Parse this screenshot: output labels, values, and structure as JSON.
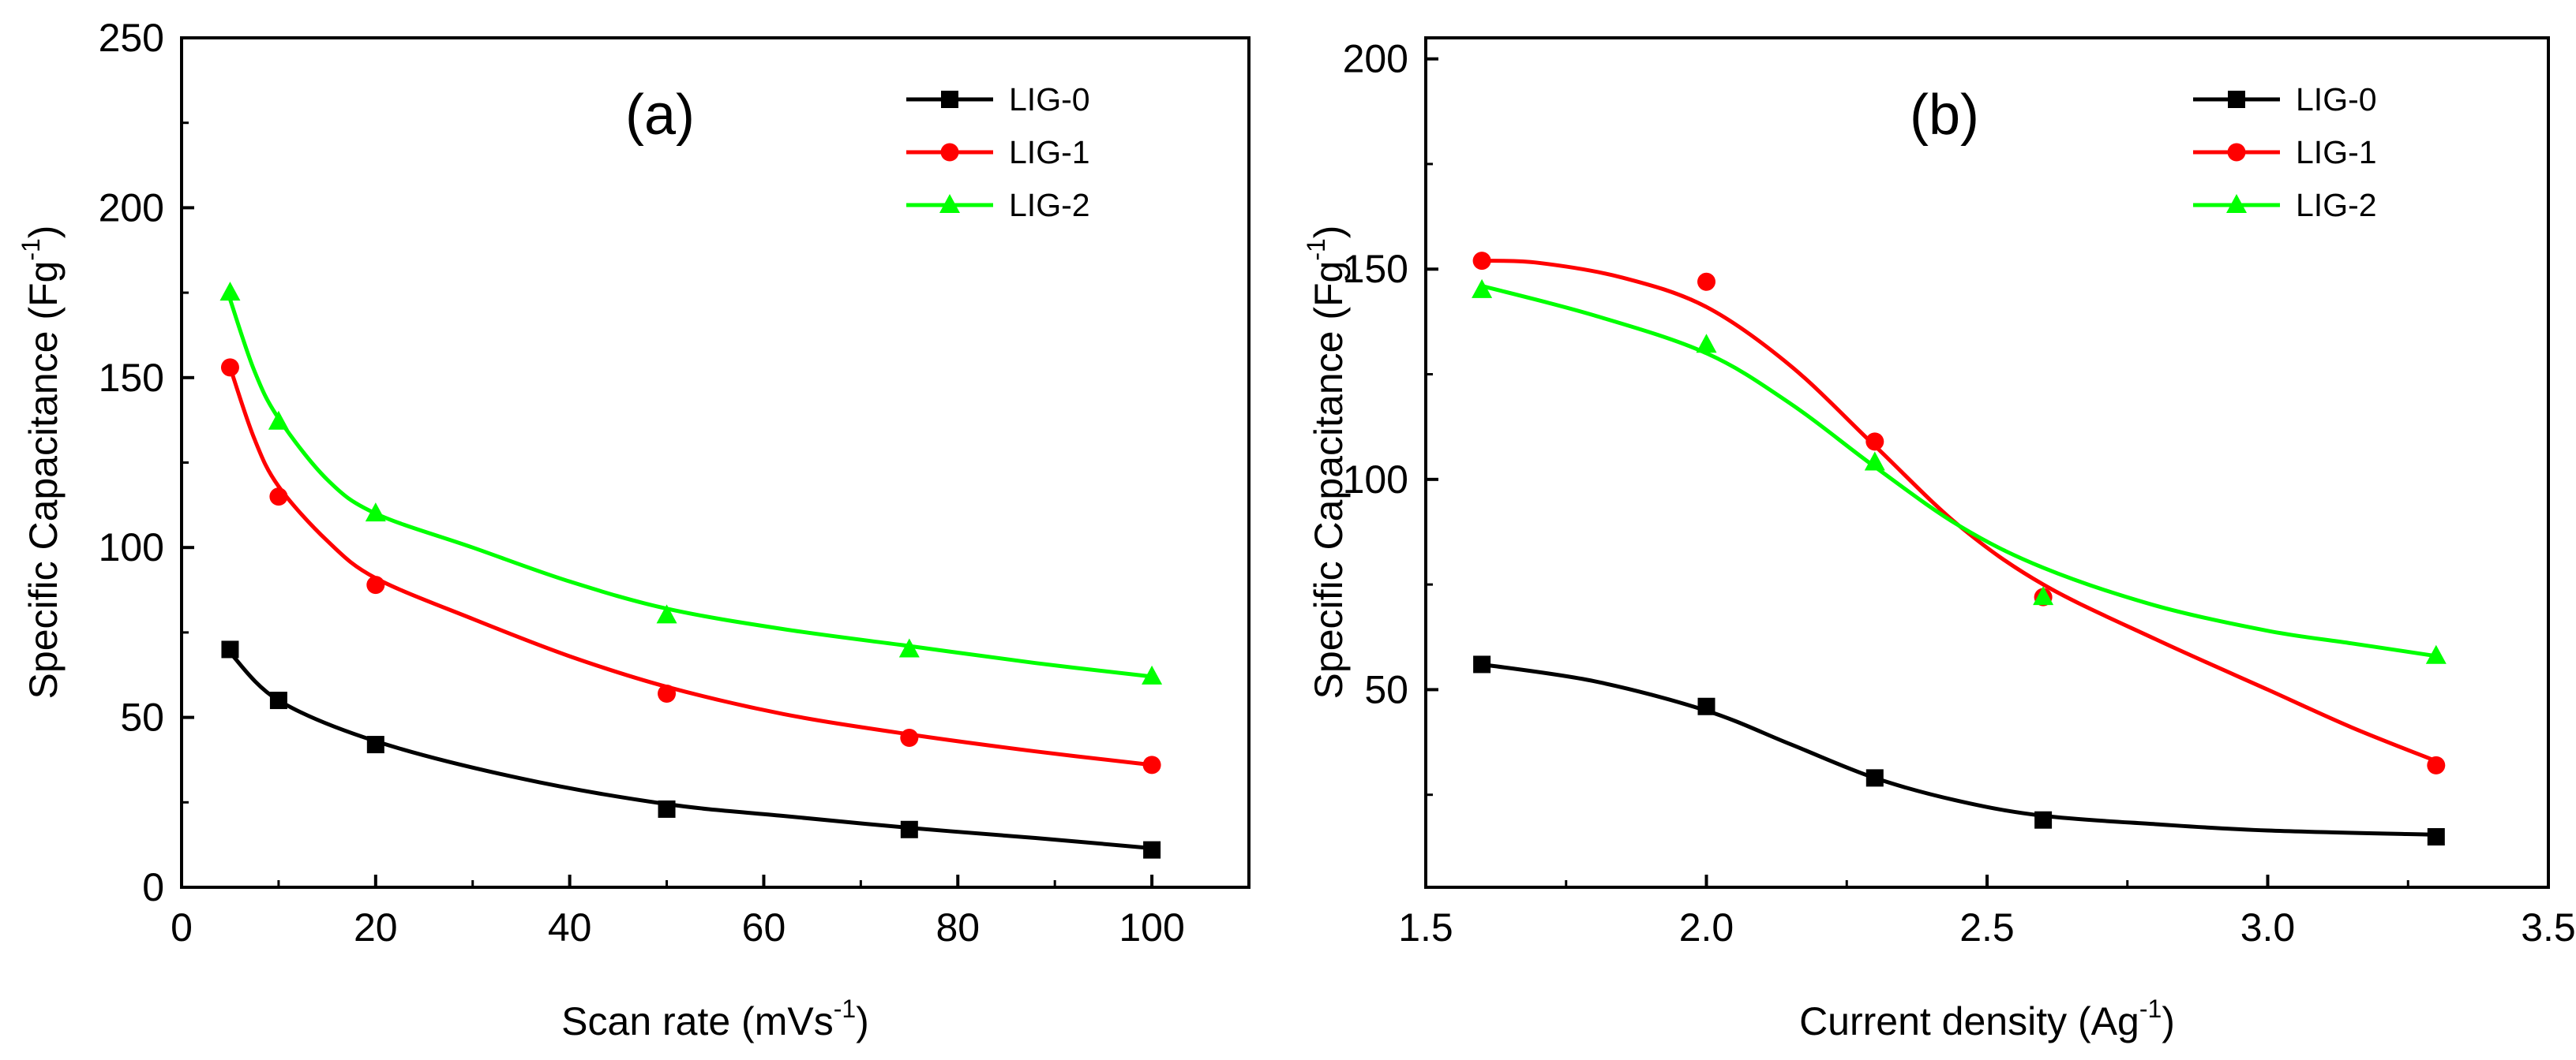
{
  "chart_data": [
    {
      "type": "scatter",
      "panel_label": "(a)",
      "xlabel": "Scan rate (mVs",
      "xlabel_sup": "-1",
      "xlabel_end": ")",
      "ylabel": "Specific Capacitance (Fg",
      "ylabel_sup": "-1",
      "ylabel_end": ")",
      "xlim": [
        0,
        110
      ],
      "ylim": [
        0,
        250
      ],
      "xticks": [
        0,
        20,
        40,
        60,
        80,
        100
      ],
      "yticks": [
        0,
        50,
        100,
        150,
        200,
        250
      ],
      "tick_decimals": 0,
      "legend_position": "top-right",
      "series": [
        {
          "name": "LIG-0",
          "color": "#000000",
          "marker": "square",
          "x": [
            5,
            10,
            20,
            50,
            75,
            100
          ],
          "y": [
            70,
            55,
            42,
            23,
            17,
            11
          ],
          "fit": [
            [
              5,
              69
            ],
            [
              10,
              55
            ],
            [
              20,
              43
            ],
            [
              35,
              32
            ],
            [
              50,
              24.5
            ],
            [
              62,
              21
            ],
            [
              75,
              17.5
            ],
            [
              88,
              14.5
            ],
            [
              100,
              11.5
            ]
          ]
        },
        {
          "name": "LIG-1",
          "color": "#ff0000",
          "marker": "circle",
          "x": [
            5,
            10,
            20,
            50,
            75,
            100
          ],
          "y": [
            153,
            115,
            89,
            57,
            44,
            36
          ],
          "fit": [
            [
              5,
              153
            ],
            [
              7.5,
              132
            ],
            [
              10,
              118
            ],
            [
              15,
              102
            ],
            [
              20,
              91
            ],
            [
              30,
              79
            ],
            [
              40,
              68
            ],
            [
              50,
              59
            ],
            [
              62,
              51
            ],
            [
              75,
              45
            ],
            [
              88,
              40
            ],
            [
              100,
              36
            ]
          ]
        },
        {
          "name": "LIG-2",
          "color": "#00ff00",
          "marker": "triangle",
          "x": [
            5,
            10,
            20,
            50,
            75,
            100
          ],
          "y": [
            175,
            137,
            110,
            80,
            70,
            62
          ],
          "fit": [
            [
              5,
              173
            ],
            [
              7.5,
              152
            ],
            [
              10,
              138
            ],
            [
              15,
              120
            ],
            [
              20,
              110
            ],
            [
              30,
              100
            ],
            [
              40,
              90
            ],
            [
              50,
              82
            ],
            [
              62,
              76
            ],
            [
              75,
              71
            ],
            [
              88,
              66
            ],
            [
              100,
              62
            ]
          ]
        }
      ]
    },
    {
      "type": "scatter",
      "panel_label": "(b)",
      "xlabel": "Current density (Ag",
      "xlabel_sup": "-1",
      "xlabel_end": ")",
      "ylabel": "Specific Capacitance (Fg",
      "ylabel_sup": "-1",
      "ylabel_end": ")",
      "xlim": [
        1.5,
        3.5
      ],
      "ylim": [
        3,
        205
      ],
      "xticks": [
        1.5,
        2.0,
        2.5,
        3.0,
        3.5
      ],
      "yticks": [
        50,
        100,
        150,
        200
      ],
      "tick_decimals": 1,
      "legend_position": "top-right",
      "series": [
        {
          "name": "LIG-0",
          "color": "#000000",
          "marker": "square",
          "x": [
            1.6,
            2.0,
            2.3,
            2.6,
            3.3
          ],
          "y": [
            56,
            46,
            29,
            19,
            15
          ],
          "fit": [
            [
              1.6,
              56
            ],
            [
              1.8,
              52
            ],
            [
              2.0,
              45
            ],
            [
              2.15,
              37
            ],
            [
              2.3,
              29
            ],
            [
              2.45,
              23.5
            ],
            [
              2.6,
              20
            ],
            [
              2.8,
              18
            ],
            [
              3.0,
              16.5
            ],
            [
              3.3,
              15.5
            ]
          ]
        },
        {
          "name": "LIG-1",
          "color": "#ff0000",
          "marker": "circle",
          "x": [
            1.6,
            2.0,
            2.3,
            2.6,
            3.3
          ],
          "y": [
            152,
            147,
            109,
            72,
            32
          ],
          "fit": [
            [
              1.6,
              152
            ],
            [
              1.7,
              151.5
            ],
            [
              1.85,
              148
            ],
            [
              2.0,
              141
            ],
            [
              2.15,
              127
            ],
            [
              2.3,
              108
            ],
            [
              2.45,
              89
            ],
            [
              2.6,
              75
            ],
            [
              2.8,
              62
            ],
            [
              3.0,
              50
            ],
            [
              3.15,
              41
            ],
            [
              3.3,
              33
            ]
          ]
        },
        {
          "name": "LIG-2",
          "color": "#00ff00",
          "marker": "triangle",
          "x": [
            1.6,
            2.0,
            2.3,
            2.6,
            3.3
          ],
          "y": [
            145,
            132,
            104,
            72,
            58
          ],
          "fit": [
            [
              1.6,
              146
            ],
            [
              1.8,
              139
            ],
            [
              2.0,
              130
            ],
            [
              2.15,
              118
            ],
            [
              2.3,
              103
            ],
            [
              2.45,
              89
            ],
            [
              2.6,
              79
            ],
            [
              2.8,
              70
            ],
            [
              3.0,
              64
            ],
            [
              3.15,
              61
            ],
            [
              3.3,
              58
            ]
          ]
        }
      ]
    }
  ]
}
